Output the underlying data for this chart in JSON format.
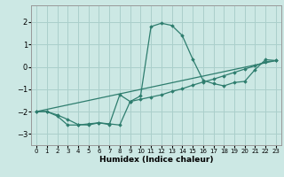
{
  "bg_color": "#cce8e4",
  "grid_color": "#aacfcb",
  "line_color": "#2e7d6e",
  "xlabel": "Humidex (Indice chaleur)",
  "xlim": [
    -0.5,
    23.5
  ],
  "ylim": [
    -3.5,
    2.75
  ],
  "xticks": [
    0,
    1,
    2,
    3,
    4,
    5,
    6,
    7,
    8,
    9,
    10,
    11,
    12,
    13,
    14,
    15,
    16,
    17,
    18,
    19,
    20,
    21,
    22,
    23
  ],
  "yticks": [
    -3,
    -2,
    -1,
    0,
    1,
    2
  ],
  "line1": {
    "x": [
      0,
      1,
      2,
      3,
      4,
      5,
      6,
      7,
      8,
      9,
      10,
      11,
      12,
      13,
      14,
      15,
      16,
      17,
      18,
      19,
      20,
      21,
      22,
      23
    ],
    "y": [
      -2.0,
      -2.0,
      -2.2,
      -2.6,
      -2.6,
      -2.55,
      -2.5,
      -2.55,
      -2.6,
      -1.55,
      -1.3,
      1.8,
      1.95,
      1.85,
      1.4,
      0.35,
      -0.6,
      -0.75,
      -0.85,
      -0.7,
      -0.65,
      -0.12,
      0.32,
      0.28
    ]
  },
  "line2": {
    "x": [
      0,
      23
    ],
    "y": [
      -2.0,
      0.28
    ]
  },
  "line3": {
    "x": [
      0,
      1,
      2,
      3,
      4,
      5,
      6,
      7,
      8,
      9,
      10,
      11,
      12,
      13,
      14,
      15,
      16,
      17,
      18,
      19,
      20,
      21,
      22,
      23
    ],
    "y": [
      -2.0,
      -2.0,
      -2.15,
      -2.35,
      -2.58,
      -2.6,
      -2.5,
      -2.58,
      -1.25,
      -1.55,
      -1.45,
      -1.35,
      -1.25,
      -1.1,
      -0.98,
      -0.82,
      -0.68,
      -0.55,
      -0.4,
      -0.25,
      -0.1,
      0.05,
      0.22,
      0.28
    ]
  }
}
